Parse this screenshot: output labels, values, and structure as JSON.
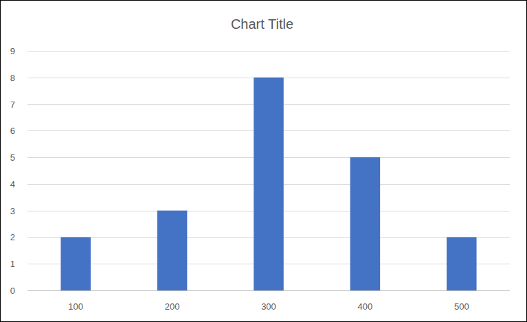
{
  "chart_data": {
    "type": "bar",
    "title": "Chart Title",
    "categories": [
      "100",
      "200",
      "300",
      "400",
      "500"
    ],
    "values": [
      2,
      3,
      8,
      5,
      2
    ],
    "color": "#4472c4",
    "ylim": [
      0,
      9
    ],
    "yticks": [
      0,
      1,
      2,
      3,
      4,
      5,
      6,
      7,
      8,
      9
    ],
    "grid": true
  }
}
